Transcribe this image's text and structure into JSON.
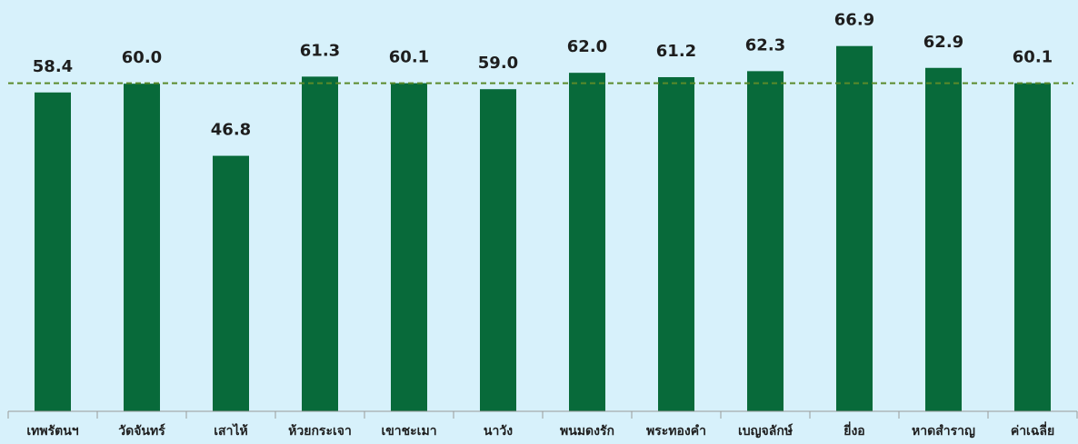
{
  "chart_data": {
    "type": "bar",
    "categories": [
      "เทพรัตนฯ",
      "วัดจันทร์",
      "เสาไห้",
      "ห้วยกระเจา",
      "เขาชะเมา",
      "นาวัง",
      "พนมดงรัก",
      "พระทองคำ",
      "เบญจลักษ์",
      "ยี่งอ",
      "หาดสำราญ",
      "ค่าเฉลี่ย"
    ],
    "values": [
      58.4,
      60.0,
      46.8,
      61.3,
      60.1,
      59.0,
      62.0,
      61.2,
      62.3,
      66.9,
      62.9,
      60.1
    ],
    "value_labels": [
      "58.4",
      "60.0",
      "46.8",
      "61.3",
      "60.1",
      "59.0",
      "62.0",
      "61.2",
      "62.3",
      "66.9",
      "62.9",
      "60.1"
    ],
    "color": "#086a3a",
    "average_line": 60.1,
    "average_line_color": "#5a8a2a",
    "ylim": [
      0,
      75
    ]
  }
}
